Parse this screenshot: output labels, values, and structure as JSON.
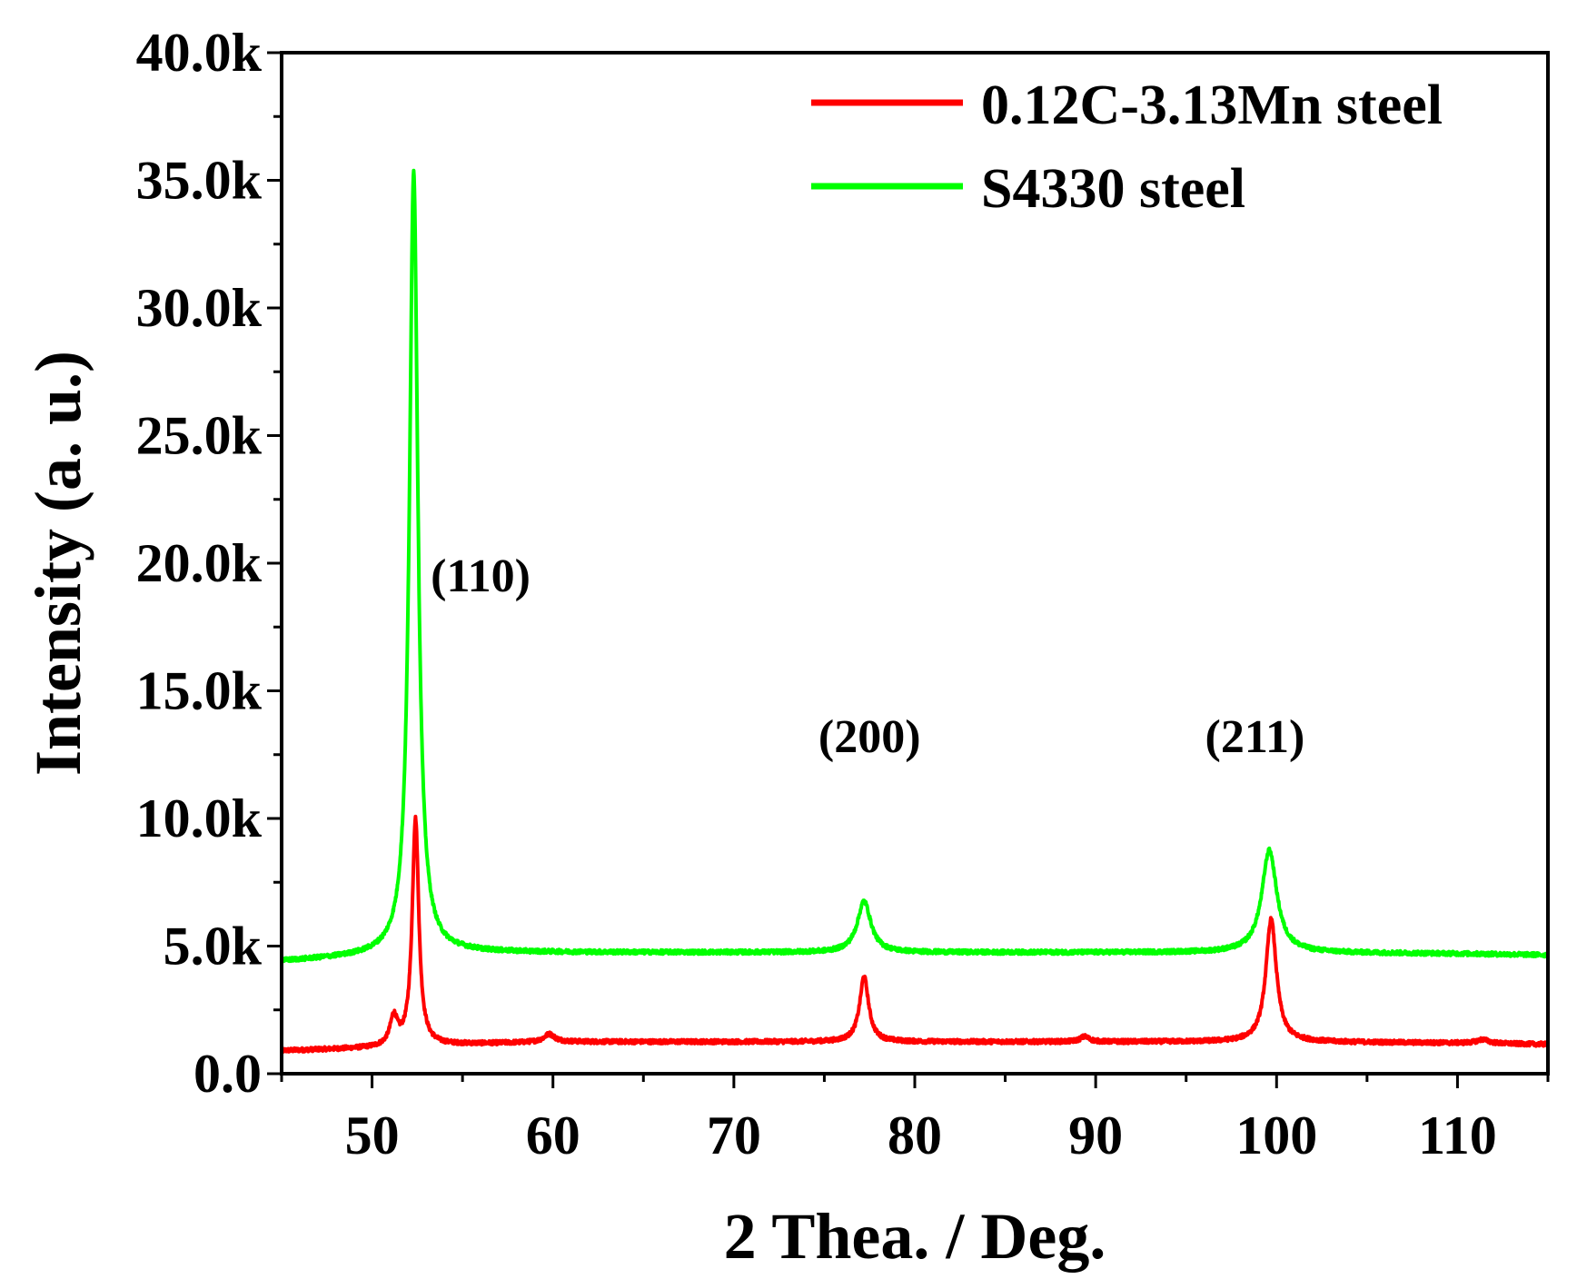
{
  "chart_data": {
    "type": "line",
    "title": "",
    "xlabel": "2 Thea. / Deg.",
    "ylabel": "Intensity (a. u.)",
    "xlim": [
      45,
      115
    ],
    "ylim": [
      0,
      40000
    ],
    "x_ticks": [
      50,
      60,
      70,
      80,
      90,
      100,
      110
    ],
    "x_tick_labels": [
      "50",
      "60",
      "70",
      "80",
      "90",
      "100",
      "110"
    ],
    "y_ticks": [
      0,
      5000,
      10000,
      15000,
      20000,
      25000,
      30000,
      35000,
      40000
    ],
    "y_tick_labels": [
      "0.0",
      "5.0k",
      "10.0k",
      "15.0k",
      "20.0k",
      "25.0k",
      "30.0k",
      "35.0k",
      "40.0k"
    ],
    "grid": false,
    "legend_position": "top-right",
    "series": [
      {
        "name": "0.12C-3.13Mn steel",
        "color": "#ff0000",
        "baseline": [
          [
            45,
            900
          ],
          [
            50,
            1000
          ],
          [
            55,
            1150
          ],
          [
            60,
            1250
          ],
          [
            70,
            1250
          ],
          [
            80,
            1250
          ],
          [
            90,
            1250
          ],
          [
            100,
            1250
          ],
          [
            110,
            1200
          ],
          [
            115,
            1150
          ]
        ],
        "peaks": [
          {
            "x": 51.2,
            "height": 1100,
            "width": 0.25
          },
          {
            "x": 52.4,
            "height": 8900,
            "width": 0.22
          },
          {
            "x": 59.8,
            "height": 300,
            "width": 0.35
          },
          {
            "x": 77.2,
            "height": 2550,
            "width": 0.3
          },
          {
            "x": 89.4,
            "height": 200,
            "width": 0.3
          },
          {
            "x": 99.7,
            "height": 4800,
            "width": 0.35
          },
          {
            "x": 111.4,
            "height": 150,
            "width": 0.4
          }
        ]
      },
      {
        "name": "S4330 steel",
        "color": "#00ff00",
        "baseline": [
          [
            45,
            4400
          ],
          [
            50,
            4600
          ],
          [
            55,
            4750
          ],
          [
            60,
            4750
          ],
          [
            70,
            4750
          ],
          [
            80,
            4750
          ],
          [
            90,
            4750
          ],
          [
            100,
            4750
          ],
          [
            110,
            4700
          ],
          [
            115,
            4650
          ]
        ],
        "peaks": [
          {
            "x": 52.3,
            "height": 30700,
            "width": 0.28
          },
          {
            "x": 77.2,
            "height": 2000,
            "width": 0.45
          },
          {
            "x": 99.6,
            "height": 4000,
            "width": 0.5
          }
        ]
      }
    ],
    "annotations": [
      {
        "text": "(110)",
        "x": 56.0,
        "y": 18900
      },
      {
        "text": "(200)",
        "x": 77.5,
        "y": 12600
      },
      {
        "text": "(211)",
        "x": 98.8,
        "y": 12600
      }
    ]
  }
}
